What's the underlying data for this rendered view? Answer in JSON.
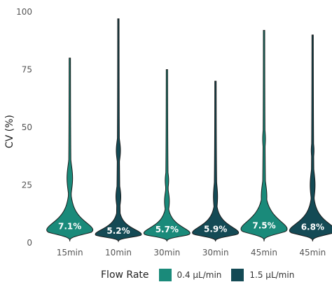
{
  "chart_data": {
    "type": "violin",
    "title": "",
    "ylabel": "CV (%)",
    "xlabel": "",
    "ylim": [
      0,
      100
    ],
    "yticks": [
      0,
      25,
      50,
      75,
      100
    ],
    "grid": false,
    "legend": {
      "title": "Flow Rate",
      "position": "bottom",
      "entries": [
        {
          "name": "0.4 μL/min",
          "color": "#1a8a7a"
        },
        {
          "name": "1.5 μL/min",
          "color": "#144a55"
        }
      ]
    },
    "violins": [
      {
        "category": "15min",
        "series": "0.4 μL/min",
        "median_label": "7.1%",
        "median": 7.1,
        "max": 80
      },
      {
        "category": "10min",
        "series": "1.5 μL/min",
        "median_label": "5.2%",
        "median": 5.2,
        "max": 97
      },
      {
        "category": "30min",
        "series": "0.4 μL/min",
        "median_label": "5.7%",
        "median": 5.7,
        "max": 75
      },
      {
        "category": "30min",
        "series": "1.5 μL/min",
        "median_label": "5.9%",
        "median": 5.9,
        "max": 70
      },
      {
        "category": "45min",
        "series": "0.4 μL/min",
        "median_label": "7.5%",
        "median": 7.5,
        "max": 92
      },
      {
        "category": "45min",
        "series": "1.5 μL/min",
        "median_label": "6.8%",
        "median": 6.8,
        "max": 90
      }
    ]
  }
}
